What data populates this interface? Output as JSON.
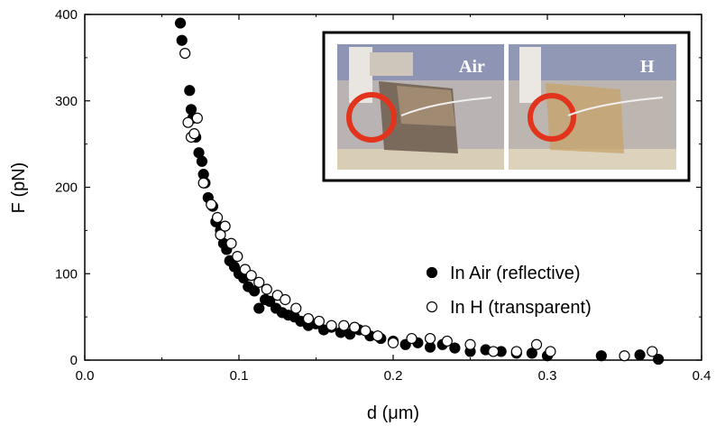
{
  "chart_data": {
    "type": "scatter",
    "xlabel": "d (μm)",
    "ylabel": "F (pN)",
    "xlim": [
      0.0,
      0.4
    ],
    "ylim": [
      0,
      400
    ],
    "x_ticks": [
      "0.0",
      "0.1",
      "0.2",
      "0.3",
      "0.4"
    ],
    "y_ticks": [
      "0",
      "100",
      "200",
      "300",
      "400"
    ],
    "grid": false,
    "legend_placement": "right",
    "series": [
      {
        "name": "In Air (reflective)",
        "marker": "filled-circle",
        "color": "#000000",
        "x": [
          0.062,
          0.063,
          0.068,
          0.069,
          0.07,
          0.072,
          0.074,
          0.076,
          0.077,
          0.078,
          0.08,
          0.083,
          0.085,
          0.088,
          0.09,
          0.092,
          0.094,
          0.097,
          0.1,
          0.103,
          0.106,
          0.11,
          0.113,
          0.117,
          0.12,
          0.124,
          0.128,
          0.132,
          0.136,
          0.14,
          0.145,
          0.15,
          0.155,
          0.16,
          0.166,
          0.172,
          0.178,
          0.185,
          0.192,
          0.2,
          0.208,
          0.216,
          0.224,
          0.232,
          0.24,
          0.25,
          0.26,
          0.27,
          0.28,
          0.29,
          0.3,
          0.335,
          0.36,
          0.372
        ],
        "y": [
          390,
          370,
          312,
          290,
          280,
          258,
          240,
          230,
          215,
          205,
          188,
          178,
          160,
          150,
          135,
          128,
          115,
          108,
          100,
          95,
          85,
          80,
          60,
          70,
          68,
          60,
          55,
          52,
          50,
          45,
          40,
          42,
          35,
          38,
          32,
          30,
          35,
          28,
          25,
          22,
          18,
          20,
          15,
          18,
          14,
          10,
          12,
          10,
          8,
          8,
          5,
          5,
          6,
          1
        ]
      },
      {
        "name": "In H (transparent)",
        "marker": "open-circle",
        "color": "#000000",
        "x": [
          0.065,
          0.067,
          0.069,
          0.071,
          0.073,
          0.077,
          0.082,
          0.086,
          0.088,
          0.091,
          0.095,
          0.099,
          0.104,
          0.108,
          0.113,
          0.118,
          0.125,
          0.13,
          0.137,
          0.145,
          0.152,
          0.16,
          0.168,
          0.175,
          0.182,
          0.19,
          0.2,
          0.212,
          0.224,
          0.235,
          0.25,
          0.265,
          0.28,
          0.293,
          0.302,
          0.35,
          0.368
        ],
        "y": [
          355,
          275,
          258,
          262,
          280,
          205,
          180,
          165,
          145,
          155,
          135,
          120,
          105,
          98,
          90,
          82,
          75,
          70,
          60,
          48,
          45,
          40,
          40,
          38,
          34,
          28,
          20,
          25,
          25,
          22,
          18,
          10,
          10,
          18,
          10,
          5,
          10
        ]
      }
    ],
    "inset": {
      "panels": [
        {
          "label": "Air"
        },
        {
          "label": "H"
        }
      ]
    }
  }
}
